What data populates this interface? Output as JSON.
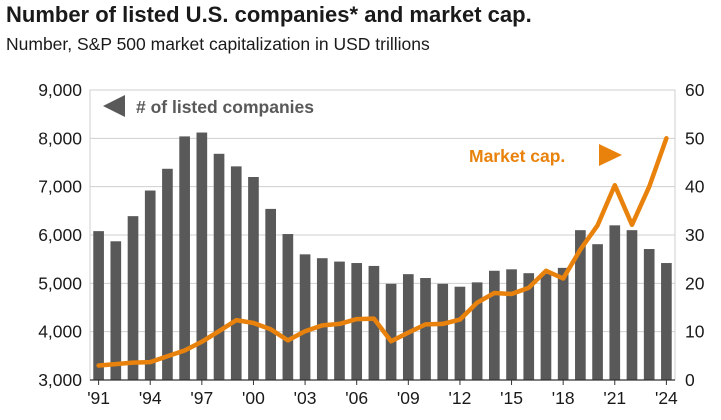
{
  "chart_data": {
    "type": "bar+line",
    "title": "Number of listed U.S. companies* and market cap.",
    "subtitle": "Number, S&P 500 market capitalization in USD trillions",
    "years": [
      1991,
      1992,
      1993,
      1994,
      1995,
      1996,
      1997,
      1998,
      1999,
      2000,
      2001,
      2002,
      2003,
      2004,
      2005,
      2006,
      2007,
      2008,
      2009,
      2010,
      2011,
      2012,
      2013,
      2014,
      2015,
      2016,
      2017,
      2018,
      2019,
      2020,
      2021,
      2022,
      2023,
      2024
    ],
    "x_tick_labels": [
      "'91",
      "'94",
      "'97",
      "'00",
      "'03",
      "'06",
      "'09",
      "'12",
      "'15",
      "'18",
      "'21",
      "'24"
    ],
    "series": [
      {
        "name": "# of listed companies",
        "axis": "left",
        "kind": "bar",
        "color": "#595959",
        "values": [
          6080,
          5870,
          6390,
          6920,
          7370,
          8040,
          8120,
          7680,
          7420,
          7200,
          6540,
          6020,
          5600,
          5520,
          5450,
          5420,
          5360,
          4990,
          5190,
          5110,
          4990,
          4930,
          5020,
          5260,
          5290,
          5210,
          5200,
          5320,
          6100,
          5810,
          6200,
          6100,
          5710,
          5420
        ]
      },
      {
        "name": "Market cap.",
        "axis": "right",
        "kind": "line",
        "color": "#e8820c",
        "values": [
          3.0,
          3.3,
          3.6,
          3.7,
          4.9,
          6.1,
          7.9,
          10.1,
          12.4,
          11.8,
          10.5,
          8.2,
          10.1,
          11.3,
          11.6,
          12.6,
          12.7,
          8.0,
          9.8,
          11.5,
          11.6,
          12.5,
          16.0,
          18.0,
          17.8,
          19.1,
          22.6,
          21.0,
          27.0,
          32.0,
          40.3,
          32.1,
          40.0,
          50.0
        ]
      }
    ],
    "left_axis": {
      "min": 3000,
      "max": 9000,
      "ticks": [
        "3,000",
        "4,000",
        "5,000",
        "6,000",
        "7,000",
        "8,000",
        "9,000"
      ]
    },
    "right_axis": {
      "min": 0,
      "max": 60,
      "ticks": [
        "0",
        "10",
        "20",
        "30",
        "40",
        "50",
        "60"
      ]
    },
    "annotations": {
      "bars_label": "# of listed companies",
      "line_label": "Market cap."
    },
    "grid": true
  }
}
